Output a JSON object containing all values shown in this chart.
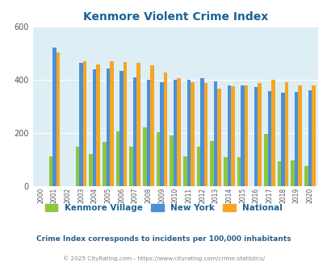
{
  "title": "Kenmore Violent Crime Index",
  "years": [
    2000,
    2001,
    2002,
    2003,
    2004,
    2005,
    2006,
    2007,
    2008,
    2009,
    2010,
    2011,
    2012,
    2013,
    2014,
    2015,
    2016,
    2017,
    2018,
    2019,
    2020
  ],
  "kenmore": [
    0,
    113,
    0,
    148,
    122,
    168,
    205,
    150,
    220,
    202,
    190,
    112,
    150,
    170,
    108,
    108,
    0,
    197,
    95,
    96,
    75
  ],
  "new_york": [
    0,
    520,
    0,
    463,
    440,
    443,
    433,
    410,
    400,
    390,
    400,
    400,
    406,
    395,
    378,
    380,
    373,
    357,
    352,
    355,
    360
  ],
  "national": [
    0,
    502,
    0,
    470,
    457,
    470,
    468,
    464,
    454,
    428,
    405,
    392,
    388,
    368,
    375,
    380,
    387,
    399,
    390,
    380,
    379
  ],
  "kenmore_color": "#8dc63f",
  "new_york_color": "#4a90d9",
  "national_color": "#f5a623",
  "bg_color": "#deeef5",
  "title_color": "#1a6496",
  "ylabel_max": 600,
  "note": "Crime Index corresponds to incidents per 100,000 inhabitants",
  "footer": "© 2025 CityRating.com - https://www.cityrating.com/crime-statistics/",
  "bar_width": 0.27
}
